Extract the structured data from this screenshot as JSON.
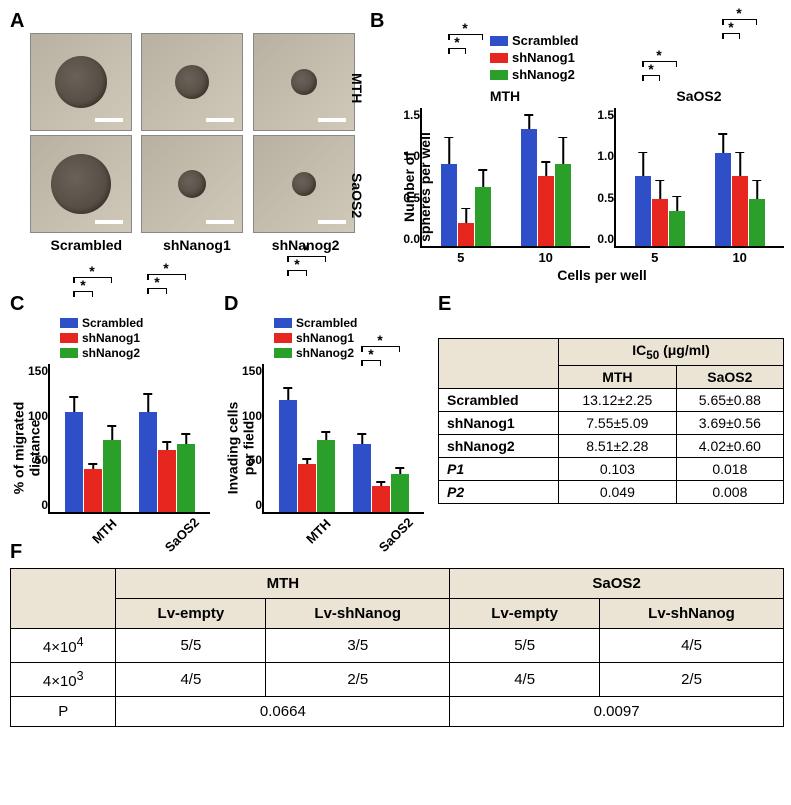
{
  "colors": {
    "scrambled": "#2f4fc9",
    "shNanog1": "#e6261f",
    "shNanog2": "#2aa02a",
    "table_header_bg": "#ebe4d4",
    "micro_bg1": "#b8b0a0",
    "micro_bg2": "#d0c8b8",
    "sphere_dark": "#4a4238"
  },
  "panelA": {
    "label": "A",
    "rows": [
      "MTH",
      "SaOS2"
    ],
    "cols": [
      "Scrambled",
      "shNanog1",
      "shNanog2"
    ],
    "sphere_sizes": [
      [
        52,
        34,
        26
      ],
      [
        60,
        28,
        24
      ]
    ]
  },
  "panelB": {
    "label": "B",
    "legend": [
      "Scrambled",
      "shNanog1",
      "shNanog2"
    ],
    "ylabel": "Number of\nspheres per well",
    "xlabel": "Cells per well",
    "yticks": [
      "1.5",
      "1.0",
      "0.5",
      "0.0"
    ],
    "ylim": [
      0,
      1.5
    ],
    "subplots": [
      {
        "title": "MTH",
        "groups": [
          {
            "x": "5",
            "bars": [
              {
                "v": 0.88,
                "e": 0.28
              },
              {
                "v": 0.25,
                "e": 0.15
              },
              {
                "v": 0.63,
                "e": 0.18
              }
            ]
          },
          {
            "x": "10",
            "bars": [
              {
                "v": 1.25,
                "e": 0.15
              },
              {
                "v": 0.75,
                "e": 0.15
              },
              {
                "v": 0.88,
                "e": 0.28
              }
            ]
          }
        ]
      },
      {
        "title": "SaOS2",
        "groups": [
          {
            "x": "5",
            "bars": [
              {
                "v": 0.75,
                "e": 0.25
              },
              {
                "v": 0.5,
                "e": 0.2
              },
              {
                "v": 0.38,
                "e": 0.15
              }
            ]
          },
          {
            "x": "10",
            "bars": [
              {
                "v": 1.0,
                "e": 0.2
              },
              {
                "v": 0.75,
                "e": 0.25
              },
              {
                "v": 0.5,
                "e": 0.2
              }
            ]
          }
        ]
      }
    ]
  },
  "panelC": {
    "label": "C",
    "legend": [
      "Scrambled",
      "shNanog1",
      "shNanog2"
    ],
    "ylabel": "% of migrated\ndistance",
    "yticks": [
      "150",
      "100",
      "50",
      "0"
    ],
    "ylim": [
      0,
      150
    ],
    "groups": [
      {
        "x": "MTH",
        "bars": [
          {
            "v": 100,
            "e": 15
          },
          {
            "v": 43,
            "e": 5
          },
          {
            "v": 72,
            "e": 14
          }
        ]
      },
      {
        "x": "SaOS2",
        "bars": [
          {
            "v": 100,
            "e": 18
          },
          {
            "v": 62,
            "e": 8
          },
          {
            "v": 68,
            "e": 10
          }
        ]
      }
    ]
  },
  "panelD": {
    "label": "D",
    "legend": [
      "Scrambled",
      "shNanog1",
      "shNanog2"
    ],
    "ylabel": "Invading cells\nper field",
    "yticks": [
      "150",
      "100",
      "50",
      "0"
    ],
    "ylim": [
      0,
      150
    ],
    "groups": [
      {
        "x": "MTH",
        "bars": [
          {
            "v": 112,
            "e": 12
          },
          {
            "v": 48,
            "e": 5
          },
          {
            "v": 72,
            "e": 8
          }
        ]
      },
      {
        "x": "SaOS2",
        "bars": [
          {
            "v": 68,
            "e": 10
          },
          {
            "v": 26,
            "e": 4
          },
          {
            "v": 38,
            "e": 6
          }
        ]
      }
    ]
  },
  "panelE": {
    "label": "E",
    "header_top": "IC₅₀ (μg/ml)",
    "cols": [
      "MTH",
      "SaOS2"
    ],
    "rows": [
      {
        "label": "Scrambled",
        "vals": [
          "13.12±2.25",
          "5.65±0.88"
        ]
      },
      {
        "label": "shNanog1",
        "vals": [
          "7.55±5.09",
          "3.69±0.56"
        ]
      },
      {
        "label": "shNanog2",
        "vals": [
          "8.51±2.28",
          "4.02±0.60"
        ]
      },
      {
        "label": "P1",
        "ital": true,
        "vals": [
          "0.103",
          "0.018"
        ]
      },
      {
        "label": "P2",
        "ital": true,
        "vals": [
          "0.049",
          "0.008"
        ]
      }
    ]
  },
  "panelF": {
    "label": "F",
    "top_cols": [
      "MTH",
      "SaOS2"
    ],
    "sub_cols": [
      "Lv-empty",
      "Lv-shNanog",
      "Lv-empty",
      "Lv-shNanog"
    ],
    "rows": [
      {
        "label": "4×10⁴",
        "vals": [
          "5/5",
          "3/5",
          "5/5",
          "4/5"
        ]
      },
      {
        "label": "4×10³",
        "vals": [
          "4/5",
          "2/5",
          "4/5",
          "2/5"
        ]
      },
      {
        "label": "P",
        "vals_merged": [
          "0.0664",
          "0.0097"
        ]
      }
    ]
  }
}
